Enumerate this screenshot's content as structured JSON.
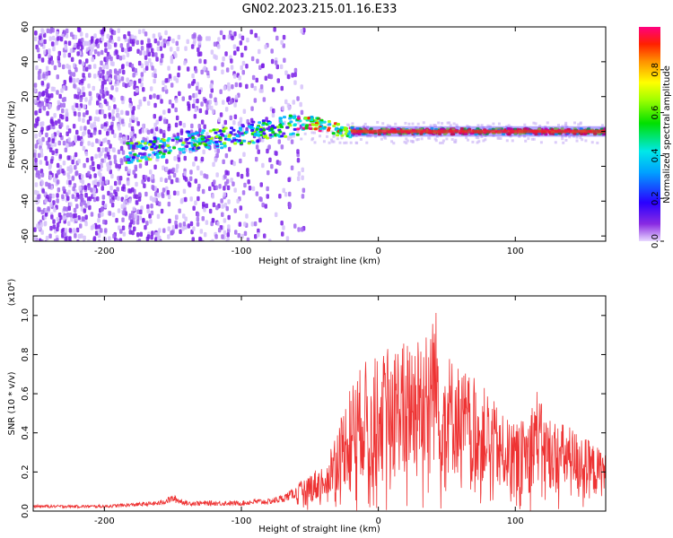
{
  "title": "GN02.2023.215.01.16.E33",
  "chart_data": [
    {
      "type": "heatmap",
      "title": "GN02.2023.215.01.16.E33",
      "xlabel": "Height of straight line (km)",
      "ylabel": "Frequency (Hz)",
      "xlim": [
        -252,
        166
      ],
      "ylim": [
        -63,
        60
      ],
      "xticks": [
        -200,
        -100,
        0,
        100
      ],
      "xtick_labels": [
        "-200",
        "-100",
        "0",
        "100"
      ],
      "yticks": [
        60,
        40,
        20,
        0,
        -20,
        -40,
        -60
      ],
      "ytick_labels": [
        "60",
        "40",
        "20",
        "0",
        "-20",
        "-40",
        "-60"
      ],
      "colorbar": {
        "label": "Normalized spectral amplitude",
        "range": [
          0,
          1
        ],
        "ticks": [
          0.0,
          0.2,
          0.4,
          0.6,
          0.8
        ],
        "tick_labels": [
          "0.0",
          "0.2",
          "0.4",
          "0.6",
          "0.8"
        ]
      },
      "ridge": {
        "x": [
          -180,
          -160,
          -140,
          -120,
          -100,
          -80,
          -60,
          -50,
          -40,
          -30,
          -20,
          0,
          50,
          100,
          166
        ],
        "y": [
          -12,
          -9,
          -6,
          -4,
          -2,
          2,
          4,
          5,
          3,
          1,
          0,
          0,
          0,
          0,
          0
        ]
      },
      "noise_region_end_km": -60
    },
    {
      "type": "line",
      "xlabel": "Height of straight line (km)",
      "ylabel": "SNR (10 * v/v)",
      "yunit_label": "(x10⁴)",
      "xlim": [
        -252,
        166
      ],
      "ylim": [
        0,
        1.1
      ],
      "xticks": [
        -200,
        -100,
        0,
        100
      ],
      "xtick_labels": [
        "-200",
        "-100",
        "0",
        "100"
      ],
      "yticks": [
        0.0,
        0.2,
        0.4,
        0.6,
        0.8,
        1.0
      ],
      "ytick_labels": [
        "0.0",
        "0.2",
        "0.4",
        "0.6",
        "0.8",
        "1.0"
      ],
      "color": "#ee3333",
      "envelope": {
        "x": [
          -252,
          -220,
          -200,
          -180,
          -160,
          -150,
          -140,
          -120,
          -100,
          -90,
          -80,
          -70,
          -60,
          -50,
          -40,
          -30,
          -20,
          -10,
          0,
          10,
          20,
          30,
          35,
          40,
          45,
          50,
          60,
          70,
          80,
          90,
          100,
          110,
          115,
          120,
          130,
          140,
          150,
          160,
          166
        ],
        "y": [
          0.03,
          0.03,
          0.03,
          0.04,
          0.05,
          0.08,
          0.05,
          0.05,
          0.05,
          0.06,
          0.06,
          0.08,
          0.12,
          0.18,
          0.22,
          0.4,
          0.6,
          0.7,
          0.72,
          0.78,
          0.8,
          0.85,
          0.92,
          1.0,
          0.88,
          0.75,
          0.68,
          0.62,
          0.56,
          0.45,
          0.4,
          0.45,
          0.6,
          0.48,
          0.42,
          0.4,
          0.35,
          0.3,
          0.3
        ]
      }
    }
  ]
}
